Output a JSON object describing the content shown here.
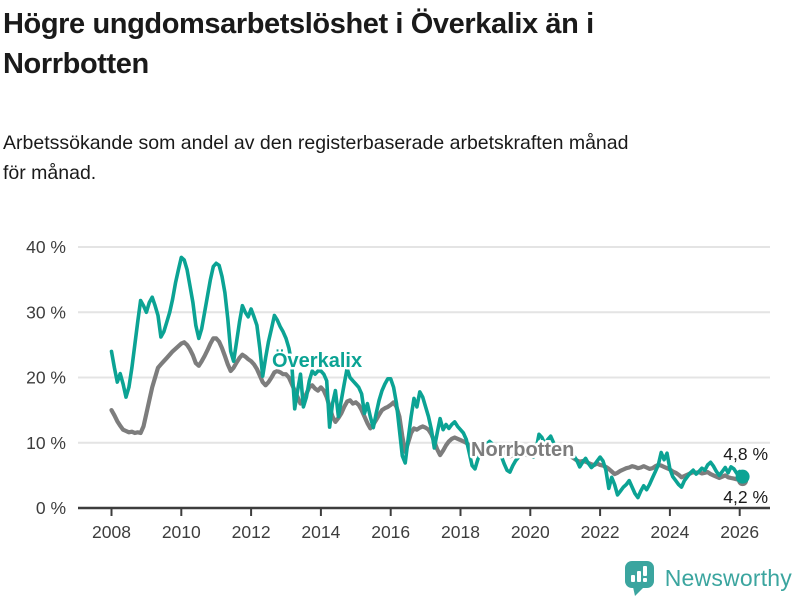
{
  "header": {
    "title_line1": "Högre ungdomsarbetslöshet i Överkalix än i",
    "title_line2": "Norrbotten",
    "subtitle_line1": "Arbetssökande som andel av den registerbaserade arbetskraften månad",
    "subtitle_line2": "för månad."
  },
  "chart_data": {
    "type": "line",
    "title": "Högre ungdomsarbetslöshet i Överkalix än i Norrbotten",
    "subtitle": "Arbetssökande som andel av den registerbaserade arbetskraften månad för månad.",
    "unit": "%",
    "grid": true,
    "legend_position": "inline-labels",
    "ylim": [
      0,
      40
    ],
    "x_range": [
      "2008-01",
      "2026-02"
    ],
    "points_per_year": 12,
    "y_ticks": {
      "values": [
        40,
        30,
        20,
        10,
        0
      ],
      "labels": [
        "40 %",
        "30 %",
        "20 %",
        "10 %",
        "0 %"
      ]
    },
    "x_ticks": {
      "values": [
        2008,
        2010,
        2012,
        2014,
        2016,
        2018,
        2020,
        2022,
        2024,
        2026
      ],
      "labels": [
        "2008",
        "2010",
        "2012",
        "2014",
        "2016",
        "2018",
        "2020",
        "2022",
        "2024",
        "2026"
      ]
    },
    "series": [
      {
        "name": "Överkalix",
        "color": "#0ba394",
        "end_label": "4,8 %",
        "end_value": 4.8,
        "values": [
          24.0,
          21.5,
          19.3,
          20.6,
          19.0,
          17.0,
          18.5,
          21.5,
          25.0,
          28.5,
          31.8,
          31.0,
          30.0,
          31.5,
          32.3,
          31.0,
          29.5,
          26.2,
          27.0,
          28.5,
          30.0,
          32.0,
          34.5,
          36.5,
          38.4,
          38.0,
          36.5,
          34.0,
          31.5,
          28.0,
          26.0,
          27.5,
          30.0,
          32.5,
          35.0,
          37.0,
          37.5,
          37.2,
          35.5,
          33.0,
          29.0,
          24.0,
          22.5,
          25.5,
          28.5,
          31.0,
          30.0,
          29.3,
          30.5,
          29.3,
          28.0,
          24.5,
          20.2,
          23.0,
          25.5,
          27.5,
          29.5,
          28.8,
          27.8,
          27.0,
          26.0,
          24.5,
          22.0,
          15.2,
          18.0,
          20.5,
          15.5,
          17.0,
          19.5,
          21.0,
          20.5,
          21.0,
          21.0,
          20.5,
          19.5,
          12.4,
          16.0,
          18.0,
          14.0,
          16.5,
          19.0,
          21.4,
          20.0,
          19.5,
          19.0,
          18.5,
          17.5,
          14.5,
          16.0,
          14.0,
          12.3,
          14.5,
          16.5,
          18.0,
          19.0,
          19.8,
          19.8,
          18.5,
          16.0,
          12.0,
          8.0,
          6.9,
          10.5,
          14.0,
          16.8,
          15.5,
          17.8,
          17.0,
          15.5,
          14.0,
          12.0,
          9.2,
          11.5,
          13.7,
          12.0,
          12.8,
          12.2,
          12.8,
          13.2,
          12.5,
          12.0,
          11.5,
          10.5,
          8.5,
          6.5,
          6.0,
          7.5,
          8.8,
          9.3,
          9.8,
          10.2,
          9.8,
          9.3,
          8.8,
          8.0,
          6.8,
          5.8,
          5.5,
          6.5,
          7.3,
          7.8,
          8.3,
          8.8,
          8.3,
          8.0,
          7.8,
          9.0,
          11.3,
          10.8,
          9.8,
          10.5,
          11.0,
          10.0,
          9.0,
          8.3,
          8.8,
          8.5,
          9.7,
          9.0,
          8.0,
          7.3,
          6.3,
          7.0,
          7.6,
          6.8,
          6.2,
          6.6,
          7.2,
          7.8,
          7.2,
          5.8,
          3.0,
          4.7,
          3.6,
          2.0,
          2.6,
          3.2,
          3.6,
          4.2,
          3.2,
          2.2,
          1.6,
          2.6,
          3.4,
          2.8,
          3.6,
          4.6,
          5.6,
          6.6,
          8.5,
          7.4,
          8.4,
          6.0,
          4.8,
          4.2,
          3.6,
          3.2,
          4.2,
          4.8,
          5.4,
          5.8,
          5.2,
          5.6,
          6.1,
          5.8,
          6.6,
          7.0,
          6.4,
          5.6,
          5.0,
          5.6,
          6.2,
          5.4,
          6.3,
          6.0,
          5.3,
          5.6,
          4.8
        ]
      },
      {
        "name": "Norrbotten",
        "color": "#7d7d7d",
        "end_label": "4,2 %",
        "end_value": 4.2,
        "values": [
          15.0,
          14.2,
          13.3,
          12.6,
          12.0,
          11.8,
          11.6,
          11.7,
          11.5,
          11.6,
          11.5,
          12.5,
          14.5,
          16.5,
          18.5,
          20.0,
          21.5,
          22.0,
          22.5,
          23.0,
          23.5,
          24.0,
          24.4,
          24.8,
          25.2,
          25.4,
          25.0,
          24.3,
          23.4,
          22.2,
          21.8,
          22.5,
          23.3,
          24.2,
          25.2,
          26.0,
          26.0,
          25.5,
          24.5,
          23.3,
          22.0,
          21.0,
          21.5,
          22.3,
          23.0,
          23.5,
          23.2,
          22.8,
          22.5,
          22.0,
          21.3,
          20.3,
          19.3,
          18.8,
          19.3,
          20.0,
          20.8,
          21.0,
          20.8,
          20.5,
          20.5,
          20.0,
          19.0,
          18.0,
          17.0,
          16.0,
          16.5,
          17.5,
          18.5,
          18.8,
          18.3,
          18.0,
          18.5,
          18.0,
          17.0,
          15.5,
          14.0,
          13.2,
          13.8,
          14.5,
          15.5,
          16.3,
          16.5,
          16.0,
          16.2,
          15.8,
          15.0,
          14.0,
          13.0,
          12.2,
          12.8,
          13.5,
          14.3,
          15.0,
          15.3,
          15.5,
          15.8,
          16.2,
          15.5,
          14.0,
          11.0,
          8.6,
          10.0,
          11.5,
          12.2,
          12.0,
          12.3,
          12.5,
          12.3,
          12.0,
          11.3,
          10.2,
          9.0,
          8.1,
          8.8,
          9.6,
          10.2,
          10.6,
          10.8,
          10.6,
          10.4,
          10.2,
          10.0,
          9.6,
          9.2,
          8.7,
          8.9,
          9.2,
          9.5,
          9.7,
          9.9,
          9.7,
          9.5,
          9.3,
          9.0,
          8.6,
          8.2,
          7.9,
          8.1,
          8.3,
          8.4,
          8.4,
          8.3,
          8.1,
          8.0,
          7.9,
          8.6,
          9.6,
          9.8,
          9.6,
          9.4,
          9.1,
          8.8,
          8.6,
          8.4,
          8.5,
          8.3,
          8.1,
          7.9,
          7.6,
          7.3,
          7.1,
          7.2,
          7.1,
          6.9,
          6.7,
          6.6,
          6.8,
          6.6,
          6.5,
          6.3,
          6.0,
          5.6,
          5.2,
          5.4,
          5.7,
          5.9,
          6.1,
          6.2,
          6.4,
          6.3,
          6.1,
          6.2,
          6.4,
          6.2,
          6.0,
          6.1,
          6.4,
          6.6,
          6.5,
          6.3,
          6.1,
          5.9,
          5.6,
          5.4,
          5.1,
          4.7,
          4.9,
          5.1,
          5.3,
          5.5,
          5.4,
          5.5,
          5.3,
          5.4,
          5.5,
          5.2,
          5.0,
          4.8,
          4.6,
          4.8,
          5.0,
          4.7,
          4.6,
          4.5,
          4.4,
          4.3,
          4.2
        ]
      }
    ]
  },
  "footer": {
    "brand": "Newsworthy",
    "brand_color": "#3ba59f",
    "logo_icon": "newsworthy-speech-bubble-barchart-icon"
  }
}
